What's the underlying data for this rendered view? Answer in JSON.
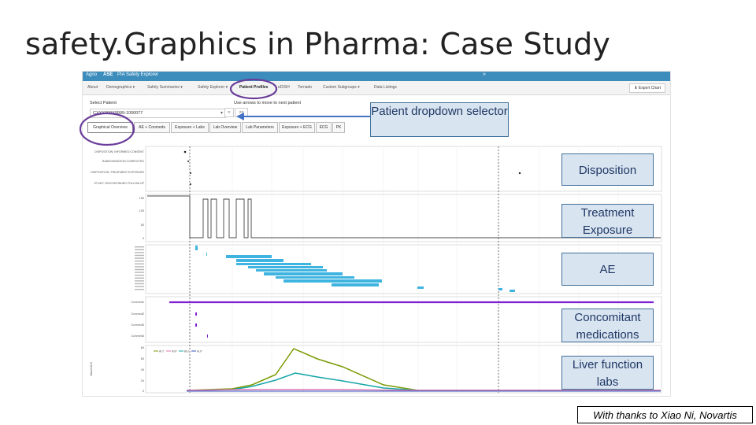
{
  "slide": {
    "title": "safety.Graphics in Pharma: Case Study"
  },
  "app": {
    "brand": "Agno",
    "app_name": "ASE",
    "app_subtitle": "PIA Safety Explorer",
    "header_color": "#3c8dbc",
    "nav_items": [
      "Demographics ▾",
      "Safety Summaries ▾",
      "Safety Explorer ▾",
      "Patient Profiles",
      "eDISH",
      "Tornado",
      "Custom Subgroups ▾",
      "Data Listings"
    ],
    "active_nav": "Patient Profiles",
    "export_label": "Export Chart",
    "export_icon": "download-icon"
  },
  "patient": {
    "select_label": "Select Patient",
    "selected": "CXXX999X9999-1000077",
    "hint": "Use arrows to move to next patient",
    "prev_label": "<",
    "next_label": ">>"
  },
  "tabs": [
    "Graphical Overview",
    "AE + Conmeds",
    "Exposure + Labs",
    "Lab Overview",
    "Lab Parameters",
    "Exposure + ECG",
    "ECG",
    "PK"
  ],
  "active_tab": "Graphical Overview",
  "panels": {
    "disposition_rows": [
      "DISPOSITION: INFORMED CONSENT",
      "RANDOMIZATION COMPLETED",
      "DISPOSITION: TREATMENT EXPOSURE",
      "STUDY: DISCONTINUED FOLLOW UP"
    ],
    "exposure_ticks": [
      "150",
      "100",
      "50",
      "0"
    ],
    "conmed_rows": [
      "Conmed1",
      "Conmed2",
      "Conmed3",
      "Conmed4"
    ],
    "lab_ticks": [
      "80",
      "60",
      "40",
      "20",
      "0"
    ],
    "lab_ylabel": "Value/ULN",
    "lab_legend": [
      "ALT",
      "AST",
      "BILI",
      "ALP"
    ]
  },
  "annotations": {
    "patient_dropdown": "Patient dropdown selector",
    "disposition": "Disposition",
    "treatment_exposure": "Treatment Exposure",
    "ae": "AE",
    "concomitant": "Concomitant medications",
    "liver": "Liver function labs"
  },
  "colors": {
    "circle": "#6a3d9a",
    "arrow": "#4472c4",
    "annotation_fill": "#d9e4f1",
    "annotation_border": "#41719c",
    "ae_bar": "#3fb4e0",
    "conmed_line": "#7f1fd1",
    "lab_green": "#7a9a01",
    "lab_teal": "#15a5a8",
    "lab_pink": "#e07ab0",
    "lab_blue": "#3050c0"
  },
  "credit": "With thanks to Xiao Ni, Novartis"
}
